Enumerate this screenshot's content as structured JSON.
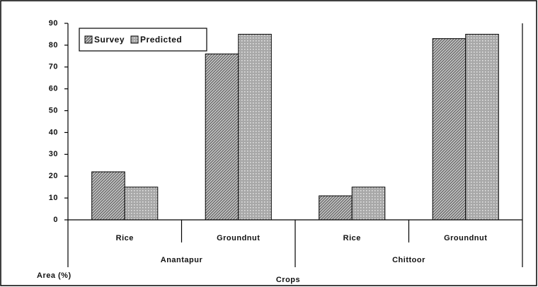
{
  "chart_data": {
    "type": "bar",
    "groups": [
      {
        "name": "Anantapur",
        "categories": [
          "Rice",
          "Groundnut"
        ]
      },
      {
        "name": "Chittoor",
        "categories": [
          "Rice",
          "Groundnut"
        ]
      }
    ],
    "series": [
      {
        "name": "Survey",
        "color": "#6e6e6e",
        "values": [
          22,
          76,
          11,
          83
        ]
      },
      {
        "name": "Predicted",
        "color": "#a8a8a8",
        "values": [
          15,
          85,
          15,
          85
        ]
      }
    ],
    "ylabel": "Area (%)",
    "xlabel": "Crops",
    "ylim": [
      0,
      90
    ],
    "yticks": [
      0,
      10,
      20,
      30,
      40,
      50,
      60,
      70,
      80,
      90
    ],
    "grid": false,
    "legend": "upper left"
  }
}
